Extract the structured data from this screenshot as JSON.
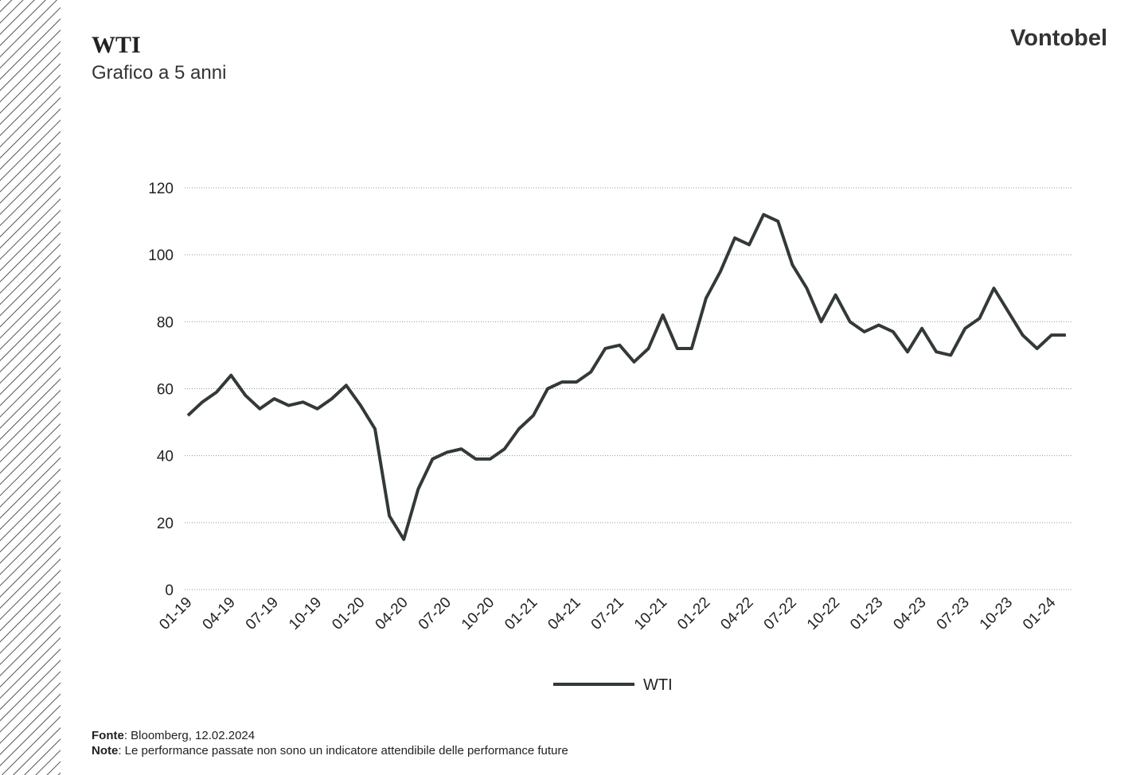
{
  "brand": "Vontobel",
  "chart_data": {
    "type": "line",
    "title": "WTI",
    "subtitle": "Grafico a 5 anni",
    "categories": [
      "01-19",
      "02-19",
      "03-19",
      "04-19",
      "05-19",
      "06-19",
      "07-19",
      "08-19",
      "09-19",
      "10-19",
      "11-19",
      "12-19",
      "01-20",
      "02-20",
      "03-20",
      "04-20",
      "05-20",
      "06-20",
      "07-20",
      "08-20",
      "09-20",
      "10-20",
      "11-20",
      "12-20",
      "01-21",
      "02-21",
      "03-21",
      "04-21",
      "05-21",
      "06-21",
      "07-21",
      "08-21",
      "09-21",
      "10-21",
      "11-21",
      "12-21",
      "01-22",
      "02-22",
      "03-22",
      "04-22",
      "05-22",
      "06-22",
      "07-22",
      "08-22",
      "09-22",
      "10-22",
      "11-22",
      "12-22",
      "01-23",
      "02-23",
      "03-23",
      "04-23",
      "05-23",
      "06-23",
      "07-23",
      "08-23",
      "09-23",
      "10-23",
      "11-23",
      "12-23",
      "01-24",
      "02-24"
    ],
    "xtick_every": 3,
    "series": [
      {
        "name": "WTI",
        "color": "#333a36",
        "values": [
          52,
          56,
          59,
          64,
          58,
          54,
          57,
          55,
          56,
          54,
          57,
          61,
          55,
          48,
          22,
          15,
          30,
          39,
          41,
          42,
          39,
          39,
          42,
          48,
          52,
          60,
          62,
          62,
          65,
          72,
          73,
          68,
          72,
          82,
          72,
          72,
          87,
          95,
          105,
          103,
          112,
          110,
          97,
          90,
          80,
          88,
          80,
          77,
          79,
          77,
          71,
          78,
          71,
          70,
          78,
          81,
          90,
          83,
          76,
          72,
          76,
          76
        ]
      }
    ],
    "ylim": [
      0,
      120
    ],
    "yticks": [
      0,
      20,
      40,
      60,
      80,
      100,
      120
    ],
    "grid": true
  },
  "footer": {
    "source_label": "Fonte",
    "source_text": ": Bloomberg, 12.02.2024",
    "note_label": "Note",
    "note_text": ": Le performance passate non sono un indicatore attendibile delle performance future"
  }
}
